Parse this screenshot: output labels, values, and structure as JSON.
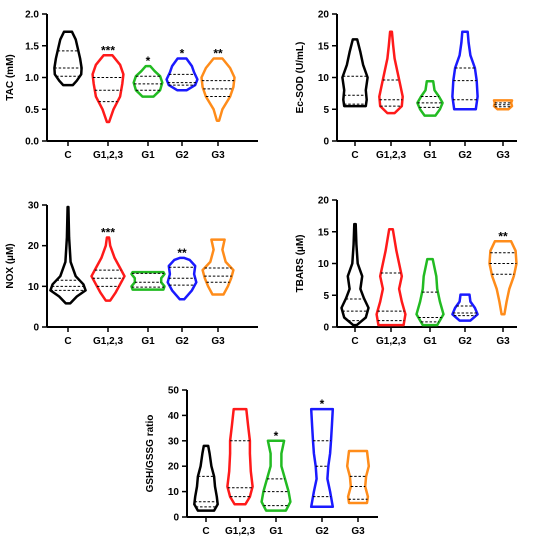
{
  "figure": {
    "colors": {
      "C": "#000000",
      "G1,2,3": "#ff1a1a",
      "G1": "#22bb22",
      "G2": "#1a1aff",
      "G3": "#ff8c1a"
    }
  },
  "chart_data": [
    {
      "type": "violin",
      "ylabel": "TAC (mM)",
      "ylim": [
        0,
        2.0
      ],
      "yticks": [
        "0.0",
        "0.5",
        "1.0",
        "1.5",
        "2.0"
      ],
      "categories": [
        "C",
        "G1,2,3",
        "G1",
        "G2",
        "G3"
      ],
      "significance": [
        "",
        "***",
        "*",
        "*",
        "**"
      ],
      "violins": [
        {
          "min": 0.88,
          "max": 1.72,
          "q1": 1.02,
          "median": 1.15,
          "q3": 1.42,
          "shape": [
            [
              0.88,
              0.22
            ],
            [
              0.95,
              0.4
            ],
            [
              1.05,
              0.6
            ],
            [
              1.15,
              0.62
            ],
            [
              1.3,
              0.55
            ],
            [
              1.45,
              0.45
            ],
            [
              1.6,
              0.35
            ],
            [
              1.72,
              0.18
            ]
          ]
        },
        {
          "min": 0.3,
          "max": 1.35,
          "q1": 0.62,
          "median": 0.8,
          "q3": 1.0,
          "shape": [
            [
              0.3,
              0.05
            ],
            [
              0.5,
              0.25
            ],
            [
              0.7,
              0.55
            ],
            [
              0.9,
              0.65
            ],
            [
              1.05,
              0.7
            ],
            [
              1.2,
              0.55
            ],
            [
              1.35,
              0.2
            ]
          ]
        },
        {
          "min": 0.7,
          "max": 1.18,
          "q1": 0.8,
          "median": 0.9,
          "q3": 1.02,
          "shape": [
            [
              0.7,
              0.25
            ],
            [
              0.8,
              0.55
            ],
            [
              0.92,
              0.65
            ],
            [
              1.02,
              0.55
            ],
            [
              1.1,
              0.3
            ],
            [
              1.18,
              0.1
            ]
          ]
        },
        {
          "min": 0.8,
          "max": 1.3,
          "q1": 0.88,
          "median": 0.92,
          "q3": 1.05,
          "shape": [
            [
              0.8,
              0.22
            ],
            [
              0.88,
              0.6
            ],
            [
              0.97,
              0.7
            ],
            [
              1.08,
              0.55
            ],
            [
              1.18,
              0.45
            ],
            [
              1.3,
              0.2
            ]
          ]
        },
        {
          "min": 0.32,
          "max": 1.3,
          "q1": 0.7,
          "median": 0.82,
          "q3": 0.95,
          "shape": [
            [
              0.32,
              0.05
            ],
            [
              0.5,
              0.2
            ],
            [
              0.7,
              0.55
            ],
            [
              0.85,
              0.7
            ],
            [
              1.0,
              0.75
            ],
            [
              1.15,
              0.55
            ],
            [
              1.3,
              0.2
            ]
          ]
        }
      ]
    },
    {
      "type": "violin",
      "ylabel": "Ec-SOD (U/mL)",
      "ylim": [
        0,
        20
      ],
      "yticks": [
        "0",
        "5",
        "10",
        "15",
        "20"
      ],
      "categories": [
        "C",
        "G1,2,3",
        "G1",
        "G2",
        "G3"
      ],
      "significance": [
        "",
        "",
        "",
        "",
        ""
      ],
      "violins": [
        {
          "min": 5.5,
          "max": 16,
          "q1": 5.8,
          "median": 7.2,
          "q3": 10.2,
          "shape": [
            [
              5.5,
              0.6
            ],
            [
              6.5,
              0.65
            ],
            [
              8,
              0.6
            ],
            [
              10,
              0.7
            ],
            [
              12,
              0.45
            ],
            [
              14,
              0.3
            ],
            [
              16,
              0.12
            ]
          ]
        },
        {
          "min": 4.4,
          "max": 17.2,
          "q1": 5.5,
          "median": 6.5,
          "q3": 9.6,
          "shape": [
            [
              4.4,
              0.2
            ],
            [
              5.5,
              0.6
            ],
            [
              7,
              0.65
            ],
            [
              9,
              0.5
            ],
            [
              11,
              0.35
            ],
            [
              13,
              0.2
            ],
            [
              15,
              0.12
            ],
            [
              17.2,
              0.05
            ]
          ]
        },
        {
          "min": 4.0,
          "max": 9.4,
          "q1": 5.3,
          "median": 6.0,
          "q3": 7.0,
          "shape": [
            [
              4,
              0.3
            ],
            [
              5,
              0.55
            ],
            [
              6,
              0.7
            ],
            [
              7,
              0.5
            ],
            [
              8,
              0.25
            ],
            [
              9.4,
              0.18
            ]
          ]
        },
        {
          "min": 5.0,
          "max": 17.2,
          "q1": 6.5,
          "median": 9.5,
          "q3": 11.5,
          "shape": [
            [
              5,
              0.6
            ],
            [
              7,
              0.7
            ],
            [
              9.5,
              0.65
            ],
            [
              11.5,
              0.55
            ],
            [
              13.5,
              0.3
            ],
            [
              15.5,
              0.2
            ],
            [
              17.2,
              0.15
            ]
          ]
        },
        {
          "min": 5.0,
          "max": 6.4,
          "q1": 5.4,
          "median": 5.7,
          "q3": 6.0,
          "shape": [
            [
              5,
              0.3
            ],
            [
              5.5,
              0.5
            ],
            [
              6,
              0.45
            ],
            [
              6.4,
              0.5
            ]
          ]
        }
      ]
    },
    {
      "type": "violin",
      "ylabel": "NOX (µM)",
      "ylim": [
        0,
        30
      ],
      "yticks": [
        "0",
        "10",
        "20",
        "30"
      ],
      "categories": [
        "C",
        "G1,2,3",
        "G1",
        "G2",
        "G3"
      ],
      "significance": [
        "",
        "***",
        "",
        "**",
        ""
      ],
      "violins": [
        {
          "min": 5.8,
          "max": 29.5,
          "q1": 9,
          "median": 10,
          "q3": 11.5,
          "shape": [
            [
              5.8,
              0.1
            ],
            [
              7.5,
              0.4
            ],
            [
              9,
              0.8
            ],
            [
              10.5,
              0.7
            ],
            [
              12.5,
              0.35
            ],
            [
              16,
              0.12
            ],
            [
              22,
              0.05
            ],
            [
              29.5,
              0.02
            ]
          ]
        },
        {
          "min": 6.5,
          "max": 22,
          "q1": 10,
          "median": 12,
          "q3": 14,
          "shape": [
            [
              6.5,
              0.1
            ],
            [
              8.5,
              0.35
            ],
            [
              10.5,
              0.55
            ],
            [
              12.5,
              0.75
            ],
            [
              14.5,
              0.55
            ],
            [
              17,
              0.3
            ],
            [
              20,
              0.1
            ],
            [
              22,
              0.05
            ]
          ]
        },
        {
          "min": 9.2,
          "max": 13.5,
          "q1": 9.8,
          "median": 11,
          "q3": 13.2,
          "shape": [
            [
              9.2,
              0.7
            ],
            [
              10,
              0.75
            ],
            [
              11,
              0.6
            ],
            [
              12,
              0.6
            ],
            [
              13,
              0.75
            ],
            [
              13.5,
              0.7
            ]
          ]
        },
        {
          "min": 6.8,
          "max": 17,
          "q1": 10.3,
          "median": 12,
          "q3": 14.7,
          "shape": [
            [
              6.8,
              0.1
            ],
            [
              9,
              0.45
            ],
            [
              11,
              0.65
            ],
            [
              13,
              0.55
            ],
            [
              15,
              0.6
            ],
            [
              16.5,
              0.35
            ],
            [
              17,
              0.1
            ]
          ]
        },
        {
          "min": 8,
          "max": 21.5,
          "q1": 11,
          "median": 12.5,
          "q3": 14.5,
          "shape": [
            [
              8,
              0.25
            ],
            [
              10,
              0.45
            ],
            [
              12,
              0.6
            ],
            [
              14,
              0.7
            ],
            [
              16,
              0.35
            ],
            [
              19,
              0.2
            ],
            [
              21.5,
              0.3
            ]
          ]
        }
      ]
    },
    {
      "type": "violin",
      "ylabel": "TBARS (µM)",
      "ylim": [
        0,
        20
      ],
      "yticks": [
        "0",
        "5",
        "10",
        "15",
        "20"
      ],
      "categories": [
        "C",
        "G1,2,3",
        "G1",
        "G2",
        "G3"
      ],
      "significance": [
        "",
        "",
        "",
        "",
        "**"
      ],
      "violins": [
        {
          "min": 0.3,
          "max": 16.2,
          "q1": 1.0,
          "median": 2.5,
          "q3": 4.4,
          "shape": [
            [
              0.3,
              0.1
            ],
            [
              1.5,
              0.6
            ],
            [
              3,
              0.75
            ],
            [
              4.5,
              0.5
            ],
            [
              6,
              0.3
            ],
            [
              8,
              0.4
            ],
            [
              10,
              0.15
            ],
            [
              13,
              0.08
            ],
            [
              16.2,
              0.04
            ]
          ]
        },
        {
          "min": 0.3,
          "max": 15.4,
          "q1": 1.0,
          "median": 2.5,
          "q3": 8.5,
          "shape": [
            [
              0.3,
              0.7
            ],
            [
              2,
              0.8
            ],
            [
              4,
              0.6
            ],
            [
              6,
              0.45
            ],
            [
              8,
              0.6
            ],
            [
              10,
              0.45
            ],
            [
              12,
              0.3
            ],
            [
              15.4,
              0.1
            ]
          ]
        },
        {
          "min": 0.3,
          "max": 10.7,
          "q1": 0.8,
          "median": 1.5,
          "q3": 5.5,
          "shape": [
            [
              0.3,
              0.4
            ],
            [
              2,
              0.75
            ],
            [
              4,
              0.55
            ],
            [
              6,
              0.4
            ],
            [
              8,
              0.35
            ],
            [
              10.7,
              0.15
            ]
          ]
        },
        {
          "min": 1.0,
          "max": 5.1,
          "q1": 1.8,
          "median": 2.2,
          "q3": 3.3,
          "shape": [
            [
              1,
              0.3
            ],
            [
              2,
              0.7
            ],
            [
              3,
              0.55
            ],
            [
              4,
              0.3
            ],
            [
              5.1,
              0.25
            ]
          ]
        },
        {
          "min": 2.0,
          "max": 13.5,
          "q1": 8.3,
          "median": 10,
          "q3": 11.7,
          "shape": [
            [
              2,
              0.08
            ],
            [
              4,
              0.2
            ],
            [
              6,
              0.35
            ],
            [
              8,
              0.6
            ],
            [
              10,
              0.75
            ],
            [
              12,
              0.7
            ],
            [
              13.5,
              0.45
            ]
          ]
        }
      ]
    },
    {
      "type": "violin",
      "ylabel": "GSH/GSSG ratio",
      "ylim": [
        0,
        50
      ],
      "yticks": [
        "0",
        "10",
        "20",
        "30",
        "40",
        "50"
      ],
      "categories": [
        "C",
        "G1,2,3",
        "G1",
        "G2",
        "G3"
      ],
      "significance": [
        "",
        "",
        "*",
        "*",
        ""
      ],
      "violins": [
        {
          "min": 2.5,
          "max": 28,
          "q1": 4,
          "median": 6,
          "q3": 16,
          "shape": [
            [
              2.5,
              0.45
            ],
            [
              5,
              0.65
            ],
            [
              8,
              0.6
            ],
            [
              12,
              0.5
            ],
            [
              16,
              0.45
            ],
            [
              20,
              0.3
            ],
            [
              25,
              0.2
            ],
            [
              28,
              0.12
            ]
          ]
        },
        {
          "min": 5,
          "max": 42.5,
          "q1": 8,
          "median": 11.5,
          "q3": 30,
          "shape": [
            [
              5,
              0.3
            ],
            [
              8,
              0.55
            ],
            [
              12,
              0.7
            ],
            [
              18,
              0.6
            ],
            [
              25,
              0.55
            ],
            [
              30,
              0.55
            ],
            [
              36,
              0.45
            ],
            [
              42.5,
              0.35
            ]
          ]
        },
        {
          "min": 2.5,
          "max": 30,
          "q1": 4.5,
          "median": 10,
          "q3": 15,
          "shape": [
            [
              2.5,
              0.55
            ],
            [
              6,
              0.8
            ],
            [
              10,
              0.7
            ],
            [
              15,
              0.5
            ],
            [
              20,
              0.3
            ],
            [
              25,
              0.3
            ],
            [
              30,
              0.45
            ]
          ]
        },
        {
          "min": 4,
          "max": 42.5,
          "q1": 8,
          "median": 20,
          "q3": 30,
          "shape": [
            [
              4,
              0.6
            ],
            [
              10,
              0.45
            ],
            [
              15,
              0.3
            ],
            [
              20,
              0.35
            ],
            [
              25,
              0.45
            ],
            [
              30,
              0.5
            ],
            [
              36,
              0.55
            ],
            [
              42.5,
              0.6
            ]
          ]
        },
        {
          "min": 5.5,
          "max": 26,
          "q1": 7,
          "median": 12,
          "q3": 16,
          "shape": [
            [
              5.5,
              0.5
            ],
            [
              8,
              0.55
            ],
            [
              12,
              0.4
            ],
            [
              16,
              0.45
            ],
            [
              20,
              0.6
            ],
            [
              23,
              0.55
            ],
            [
              26,
              0.5
            ]
          ]
        }
      ]
    }
  ]
}
